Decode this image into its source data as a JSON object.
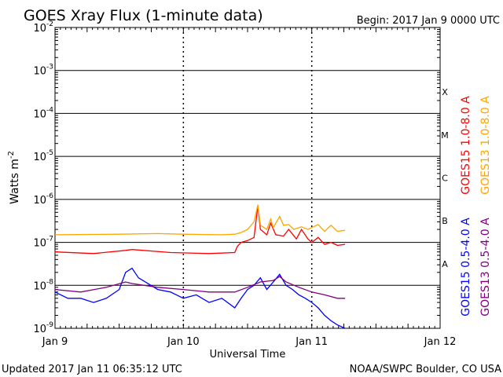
{
  "chart_data": {
    "type": "line",
    "title": "GOES Xray Flux (1-minute data)",
    "begin_label": "Begin:  2017 Jan 9 0000 UTC",
    "xlabel": "Universal Time",
    "ylabel": "Watts m",
    "ylabel_exponent": "-2",
    "yscale": "log",
    "ylim": [
      1e-09,
      0.01
    ],
    "y_ticks": [
      {
        "base": "10",
        "exp": "-9",
        "value": 1e-09
      },
      {
        "base": "10",
        "exp": "-8",
        "value": 1e-08
      },
      {
        "base": "10",
        "exp": "-7",
        "value": 1e-07
      },
      {
        "base": "10",
        "exp": "-6",
        "value": 1e-06
      },
      {
        "base": "10",
        "exp": "-5",
        "value": 1e-05
      },
      {
        "base": "10",
        "exp": "-4",
        "value": 0.0001
      },
      {
        "base": "10",
        "exp": "-3",
        "value": 0.001
      },
      {
        "base": "10",
        "exp": "-2",
        "value": 0.01
      }
    ],
    "x_ticks": [
      "Jan 9",
      "Jan 10",
      "Jan 11",
      "Jan 12"
    ],
    "xlim_days": [
      0,
      3
    ],
    "flare_classes": [
      {
        "label": "X",
        "value": 0.0001
      },
      {
        "label": "M",
        "value": 1e-05
      },
      {
        "label": "C",
        "value": 1e-06
      },
      {
        "label": "B",
        "value": 1e-07
      },
      {
        "label": "A",
        "value": 1e-08
      }
    ],
    "grid": true,
    "legend_placement": "right",
    "series": [
      {
        "name": "GOES15 1.0-8.0 A",
        "color": "#ff0000",
        "points": [
          [
            0,
            6e-08
          ],
          [
            0.3,
            5.5e-08
          ],
          [
            0.55,
            6.5e-08
          ],
          [
            0.6,
            6.8e-08
          ],
          [
            0.9,
            5.8e-08
          ],
          [
            1.2,
            5.5e-08
          ],
          [
            1.4,
            5.8e-08
          ],
          [
            1.42,
            8e-08
          ],
          [
            1.45,
            1e-07
          ],
          [
            1.5,
            1.1e-07
          ],
          [
            1.55,
            1.3e-07
          ],
          [
            1.58,
            7e-07
          ],
          [
            1.6,
            2e-07
          ],
          [
            1.65,
            1.5e-07
          ],
          [
            1.68,
            2.8e-07
          ],
          [
            1.72,
            1.5e-07
          ],
          [
            1.78,
            1.4e-07
          ],
          [
            1.82,
            2e-07
          ],
          [
            1.88,
            1.2e-07
          ],
          [
            1.92,
            2e-07
          ],
          [
            1.97,
            1.2e-07
          ],
          [
            2.0,
            1e-07
          ],
          [
            2.05,
            1.3e-07
          ],
          [
            2.1,
            9e-08
          ],
          [
            2.15,
            1e-07
          ],
          [
            2.2,
            8.5e-08
          ],
          [
            2.26,
            9e-08
          ]
        ]
      },
      {
        "name": "GOES13 1.0-8.0 A",
        "color": "#ffa500",
        "points": [
          [
            0,
            1.5e-07
          ],
          [
            0.5,
            1.55e-07
          ],
          [
            0.8,
            1.6e-07
          ],
          [
            1.0,
            1.55e-07
          ],
          [
            1.3,
            1.5e-07
          ],
          [
            1.4,
            1.55e-07
          ],
          [
            1.45,
            1.7e-07
          ],
          [
            1.5,
            2e-07
          ],
          [
            1.55,
            3e-07
          ],
          [
            1.58,
            7.5e-07
          ],
          [
            1.6,
            2.5e-07
          ],
          [
            1.65,
            2e-07
          ],
          [
            1.68,
            3.5e-07
          ],
          [
            1.7,
            2.2e-07
          ],
          [
            1.75,
            4e-07
          ],
          [
            1.78,
            2.5e-07
          ],
          [
            1.82,
            2.6e-07
          ],
          [
            1.86,
            2e-07
          ],
          [
            1.92,
            2.3e-07
          ],
          [
            1.97,
            2e-07
          ],
          [
            2.05,
            2.6e-07
          ],
          [
            2.1,
            1.8e-07
          ],
          [
            2.15,
            2.5e-07
          ],
          [
            2.2,
            1.8e-07
          ],
          [
            2.26,
            1.9e-07
          ]
        ]
      },
      {
        "name": "GOES15 0.5-4.0 A",
        "color": "#0000ff",
        "points": [
          [
            0,
            7e-09
          ],
          [
            0.1,
            5e-09
          ],
          [
            0.2,
            5e-09
          ],
          [
            0.3,
            4e-09
          ],
          [
            0.4,
            5e-09
          ],
          [
            0.5,
            8e-09
          ],
          [
            0.55,
            2e-08
          ],
          [
            0.6,
            2.5e-08
          ],
          [
            0.65,
            1.5e-08
          ],
          [
            0.8,
            8e-09
          ],
          [
            0.9,
            7e-09
          ],
          [
            1.0,
            5e-09
          ],
          [
            1.1,
            6e-09
          ],
          [
            1.2,
            4e-09
          ],
          [
            1.3,
            5e-09
          ],
          [
            1.4,
            3e-09
          ],
          [
            1.45,
            5e-09
          ],
          [
            1.5,
            8e-09
          ],
          [
            1.55,
            1e-08
          ],
          [
            1.6,
            1.5e-08
          ],
          [
            1.65,
            8e-09
          ],
          [
            1.7,
            1.2e-08
          ],
          [
            1.75,
            1.8e-08
          ],
          [
            1.8,
            1e-08
          ],
          [
            1.85,
            8e-09
          ],
          [
            1.9,
            6e-09
          ],
          [
            1.95,
            5e-09
          ],
          [
            2.0,
            4e-09
          ],
          [
            2.05,
            3e-09
          ],
          [
            2.1,
            2e-09
          ],
          [
            2.15,
            1.5e-09
          ],
          [
            2.2,
            1.2e-09
          ],
          [
            2.26,
            1e-09
          ]
        ]
      },
      {
        "name": "GOES13 0.5-4.0 A",
        "color": "#800080",
        "points": [
          [
            0,
            8e-09
          ],
          [
            0.2,
            7e-09
          ],
          [
            0.4,
            9e-09
          ],
          [
            0.55,
            1.2e-08
          ],
          [
            0.6,
            1.1e-08
          ],
          [
            0.8,
            9e-09
          ],
          [
            1.0,
            8e-09
          ],
          [
            1.2,
            7e-09
          ],
          [
            1.4,
            7e-09
          ],
          [
            1.5,
            9e-09
          ],
          [
            1.6,
            1.2e-08
          ],
          [
            1.7,
            1.3e-08
          ],
          [
            1.75,
            1.6e-08
          ],
          [
            1.8,
            1.2e-08
          ],
          [
            1.9,
            9e-09
          ],
          [
            2.0,
            7e-09
          ],
          [
            2.1,
            6e-09
          ],
          [
            2.2,
            5e-09
          ],
          [
            2.26,
            5e-09
          ]
        ]
      }
    ]
  },
  "footer": {
    "updated": "Updated 2017 Jan 11 06:35:12 UTC",
    "credit": "NOAA/SWPC Boulder, CO USA"
  }
}
